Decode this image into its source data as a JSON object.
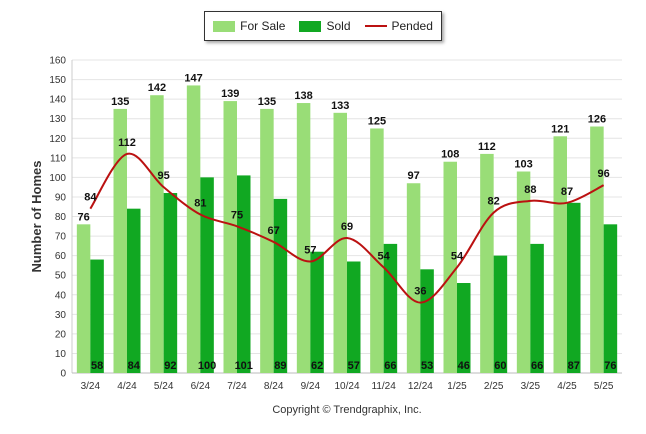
{
  "chart_data": {
    "type": "bar",
    "title": "",
    "xlabel": "",
    "ylabel": "Number of Homes",
    "ylim": [
      0,
      160
    ],
    "ytick_step": 10,
    "grid": true,
    "legend_position": "top-center",
    "categories": [
      "3/24",
      "4/24",
      "5/24",
      "6/24",
      "7/24",
      "8/24",
      "9/24",
      "10/24",
      "11/24",
      "12/24",
      "1/25",
      "2/25",
      "3/25",
      "4/25",
      "5/25"
    ],
    "series": [
      {
        "name": "For Sale",
        "type": "bar",
        "color": "#99dd77",
        "values": [
          76,
          135,
          142,
          147,
          139,
          135,
          138,
          133,
          125,
          97,
          108,
          112,
          103,
          121,
          126
        ]
      },
      {
        "name": "Sold",
        "type": "bar",
        "color": "#11a822",
        "values": [
          58,
          84,
          92,
          100,
          101,
          89,
          62,
          57,
          66,
          53,
          46,
          60,
          66,
          87,
          76
        ]
      },
      {
        "name": "Pended",
        "type": "line",
        "color": "#bb1111",
        "values": [
          84,
          112,
          95,
          81,
          75,
          67,
          57,
          69,
          54,
          36,
          54,
          82,
          88,
          87,
          96
        ]
      }
    ],
    "footer": "Copyright © Trendgraphix, Inc."
  }
}
